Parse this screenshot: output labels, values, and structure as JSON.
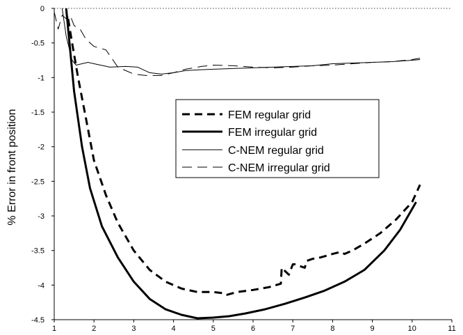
{
  "chart_data": {
    "type": "line",
    "title": "",
    "xlabel": "",
    "ylabel": "% Error in front position",
    "xlim": [
      1,
      11
    ],
    "ylim": [
      -4.5,
      0
    ],
    "x_ticks": [
      "1",
      "2",
      "3",
      "4",
      "5",
      "6",
      "7",
      "8",
      "9",
      "10",
      "11"
    ],
    "y_ticks": [
      "0",
      "-0.5",
      "-1",
      "-1.5",
      "-2",
      "-2.5",
      "-3",
      "-3.5",
      "-4",
      "-4.5"
    ],
    "grid": false,
    "reference_line": {
      "y": 0,
      "style": "dotted"
    },
    "legend_placement": "center-right",
    "series": [
      {
        "name": "FEM regular grid",
        "style": "thick-dashed",
        "x": [
          1.35,
          1.45,
          1.6,
          1.8,
          2.0,
          2.3,
          2.6,
          3.0,
          3.4,
          3.8,
          4.2,
          4.6,
          5.0,
          5.3,
          5.35,
          5.6,
          6.0,
          6.4,
          6.7,
          6.72,
          6.9,
          7.0,
          7.05,
          7.3,
          7.35,
          7.5,
          7.7,
          8.0,
          8.2,
          8.3,
          8.5,
          8.8,
          9.2,
          9.6,
          10.0,
          10.2
        ],
        "y": [
          -0.15,
          -0.5,
          -1.0,
          -1.6,
          -2.2,
          -2.7,
          -3.1,
          -3.5,
          -3.78,
          -3.95,
          -4.05,
          -4.1,
          -4.1,
          -4.12,
          -4.14,
          -4.1,
          -4.07,
          -4.03,
          -3.98,
          -3.75,
          -3.85,
          -3.7,
          -3.7,
          -3.75,
          -3.65,
          -3.62,
          -3.6,
          -3.55,
          -3.52,
          -3.55,
          -3.5,
          -3.4,
          -3.25,
          -3.05,
          -2.8,
          -2.55
        ]
      },
      {
        "name": "FEM irregular grid",
        "style": "thick-solid",
        "x": [
          1.3,
          1.4,
          1.5,
          1.7,
          1.9,
          2.2,
          2.6,
          3.0,
          3.4,
          3.8,
          4.2,
          4.6,
          5.0,
          5.4,
          5.8,
          6.3,
          6.8,
          7.3,
          7.8,
          8.3,
          8.8,
          9.3,
          9.7,
          10.1
        ],
        "y": [
          0.0,
          -0.6,
          -1.2,
          -2.0,
          -2.6,
          -3.15,
          -3.6,
          -3.95,
          -4.2,
          -4.35,
          -4.43,
          -4.48,
          -4.47,
          -4.45,
          -4.41,
          -4.35,
          -4.27,
          -4.18,
          -4.08,
          -3.95,
          -3.78,
          -3.5,
          -3.2,
          -2.8
        ]
      },
      {
        "name": "C-NEM regular grid",
        "style": "thin-solid",
        "x": [
          1.2,
          1.3,
          1.45,
          1.55,
          1.7,
          1.85,
          2.0,
          2.4,
          2.8,
          3.1,
          3.4,
          3.7,
          4.0,
          4.3,
          4.6,
          5.0,
          5.5,
          6.0,
          6.5,
          7.0,
          7.5,
          8.0,
          8.5,
          9.0,
          9.5,
          10.0,
          10.2
        ],
        "y": [
          0.0,
          -0.4,
          -0.75,
          -0.82,
          -0.8,
          -0.78,
          -0.8,
          -0.85,
          -0.84,
          -0.85,
          -0.93,
          -0.95,
          -0.93,
          -0.9,
          -0.89,
          -0.88,
          -0.87,
          -0.86,
          -0.85,
          -0.84,
          -0.83,
          -0.8,
          -0.79,
          -0.78,
          -0.77,
          -0.75,
          -0.74
        ]
      },
      {
        "name": "C-NEM irregular grid",
        "style": "thin-dashed",
        "x": [
          1.0,
          1.1,
          1.2,
          1.3,
          1.4,
          1.5,
          1.65,
          1.8,
          2.0,
          2.3,
          2.6,
          3.0,
          3.3,
          3.7,
          4.0,
          4.3,
          4.7,
          5.0,
          5.5,
          6.0,
          6.5,
          7.0,
          7.5,
          8.0,
          8.5,
          9.0,
          9.5,
          10.0,
          10.2
        ],
        "y": [
          -0.05,
          -0.3,
          -0.1,
          -0.15,
          -0.1,
          -0.25,
          -0.3,
          -0.45,
          -0.55,
          -0.6,
          -0.85,
          -0.95,
          -0.97,
          -0.97,
          -0.93,
          -0.88,
          -0.84,
          -0.82,
          -0.83,
          -0.85,
          -0.86,
          -0.85,
          -0.83,
          -0.82,
          -0.8,
          -0.78,
          -0.77,
          -0.74,
          -0.72
        ]
      }
    ]
  }
}
